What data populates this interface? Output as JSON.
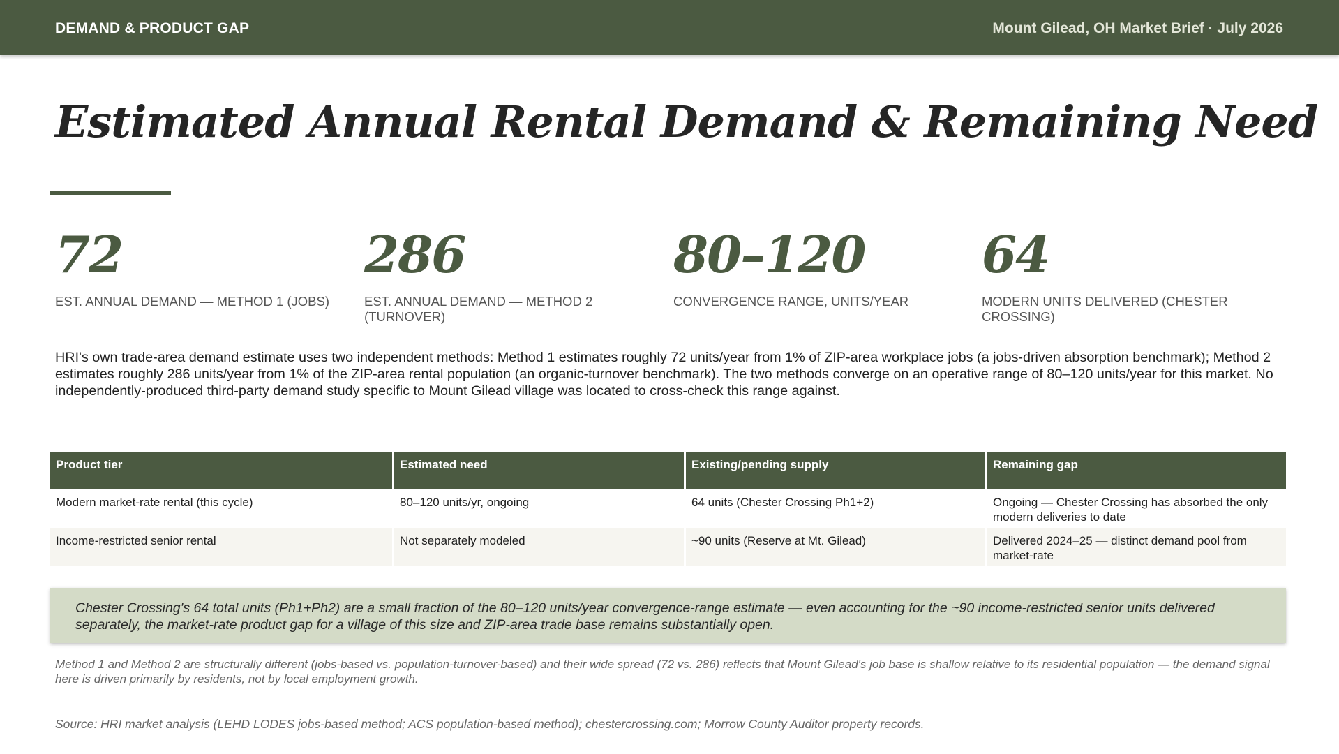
{
  "header": {
    "section": "DEMAND & PRODUCT GAP",
    "brief": "Mount Gilead, OH Market Brief · July 2026"
  },
  "title": "Estimated Annual Rental Demand & Remaining Need",
  "stats": [
    {
      "value": "72",
      "label": "EST. ANNUAL DEMAND — METHOD 1 (JOBS)"
    },
    {
      "value": "286",
      "label": "EST. ANNUAL DEMAND — METHOD 2 (TURNOVER)"
    },
    {
      "value": "80–120",
      "label": "CONVERGENCE RANGE, UNITS/YEAR"
    },
    {
      "value": "64",
      "label": "MODERN UNITS DELIVERED (CHESTER CROSSING)"
    }
  ],
  "intro": "HRI's own trade-area demand estimate uses two independent methods: Method 1 estimates roughly 72 units/year from 1% of ZIP-area workplace jobs (a jobs-driven absorption benchmark); Method 2 estimates roughly 286 units/year from 1% of the ZIP-area rental population (an organic-turnover benchmark). The two methods converge on an operative range of 80–120 units/year for this market. No independently-produced third-party demand study specific to Mount Gilead village was located to cross-check this range against.",
  "table": {
    "headers": [
      "Product tier",
      "Estimated need",
      "Existing/pending supply",
      "Remaining gap"
    ],
    "rows": [
      [
        "Modern market-rate rental (this cycle)",
        "80–120 units/yr, ongoing",
        "64 units (Chester Crossing Ph1+2)",
        "Ongoing — Chester Crossing has absorbed the only modern deliveries to date"
      ],
      [
        "Income-restricted senior rental",
        "Not separately modeled",
        "~90 units (Reserve at Mt. Gilead)",
        "Delivered 2024–25 — distinct demand pool from market-rate"
      ]
    ]
  },
  "callout": "Chester Crossing's 64 total units (Ph1+Ph2) are a small fraction of the 80–120 units/year convergence-range estimate — even accounting for the ~90 income-restricted senior units delivered separately, the market-rate product gap for a village of this size and ZIP-area trade base remains substantially open.",
  "note": "Method 1 and Method 2 are structurally different (jobs-based vs. population-turnover-based) and their wide spread (72 vs. 286) reflects that Mount Gilead's job base is shallow relative to its residential population — the demand signal here is driven primarily by residents, not by local employment growth.",
  "source": "Source: HRI market analysis (LEHD LODES jobs-based method; ACS population-based method); chestercrossing.com; Morrow County Auditor property records."
}
